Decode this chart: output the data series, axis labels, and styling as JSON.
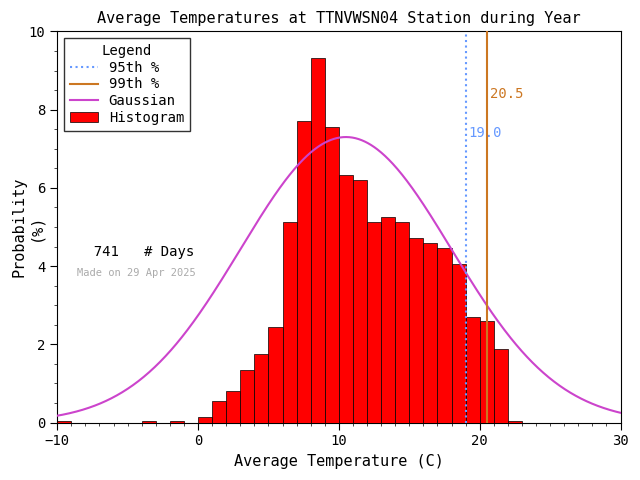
{
  "title": "Average Temperatures at TTNVWSN04 Station during Year",
  "xlabel": "Average Temperature (C)",
  "ylabel": "Probability\n(%)",
  "xlim": [
    -10,
    30
  ],
  "ylim": [
    0,
    10
  ],
  "bin_edges": [
    -10,
    -9,
    -8,
    -7,
    -6,
    -5,
    -4,
    -3,
    -2,
    -1,
    0,
    1,
    2,
    3,
    4,
    5,
    6,
    7,
    8,
    9,
    10,
    11,
    12,
    13,
    14,
    15,
    16,
    17,
    18,
    19,
    20,
    21,
    22,
    23,
    24,
    25,
    26,
    27,
    28,
    29,
    30
  ],
  "bin_heights": [
    0.04,
    0.0,
    0.0,
    0.0,
    0.0,
    0.0,
    0.04,
    0.0,
    0.04,
    0.0,
    0.13,
    0.54,
    0.81,
    1.35,
    1.75,
    2.43,
    5.13,
    7.7,
    9.31,
    7.56,
    6.34,
    6.2,
    5.13,
    5.26,
    5.13,
    4.72,
    4.59,
    4.45,
    4.05,
    2.7,
    2.6,
    1.89,
    0.04,
    0.0,
    0.0,
    0.0,
    0.0,
    0.0,
    0.0,
    0.0
  ],
  "bar_color": "#ff0000",
  "bar_edgecolor": "#000000",
  "gaussian_color": "#cc44cc",
  "gaussian_mean": 10.5,
  "gaussian_std": 7.5,
  "gaussian_amplitude": 7.3,
  "pct95_value": 19.0,
  "pct95_color": "#6699ff",
  "pct99_value": 20.5,
  "pct99_color": "#cc7722",
  "n_days": 741,
  "made_on": "Made on 29 Apr 2025",
  "bg_color": "#ffffff",
  "title_fontsize": 11,
  "label_fontsize": 11,
  "legend_fontsize": 10,
  "tick_fontsize": 10,
  "yticks": [
    0,
    2,
    4,
    6,
    8,
    10
  ],
  "xticks": [
    -10,
    0,
    10,
    20,
    30
  ]
}
